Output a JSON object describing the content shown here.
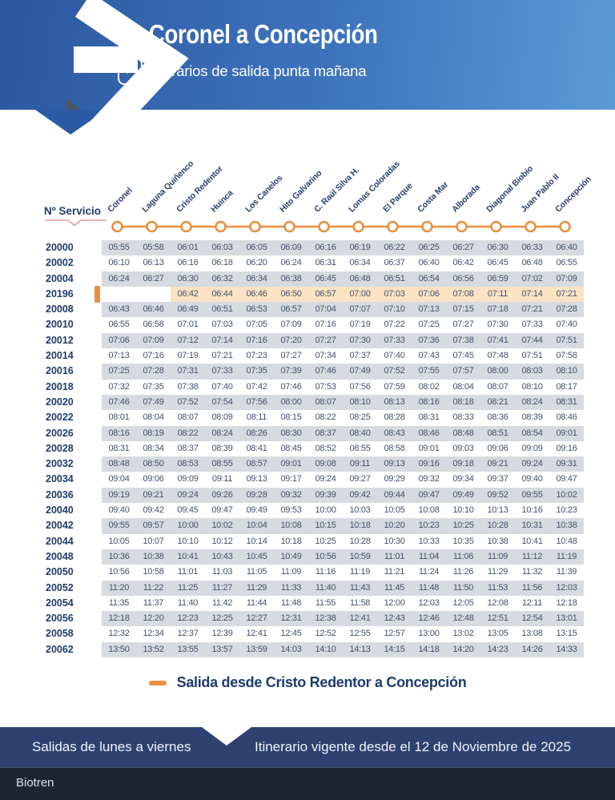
{
  "header": {
    "title": "L2 Coronel a Concepción",
    "subtitle": "Horarios de salida punta mañana"
  },
  "table": {
    "service_label": "Nº Servicio",
    "stations": [
      "Coronel",
      "Laguna Quiñenco",
      "Cristo Redentor",
      "Huinca",
      "Los Canelos",
      "Hito Galvarino",
      "C. Raúl Silva H.",
      "Lomas Coloradas",
      "El Parque",
      "Costa Mar",
      "Alborada",
      "Diagonal Biobío",
      "Juan Pablo II",
      "Concepción"
    ],
    "rows": [
      {
        "service": "20000",
        "highlight": false,
        "times": [
          "05:55",
          "05:58",
          "06:01",
          "06:03",
          "06:05",
          "06:09",
          "06:16",
          "06:19",
          "06:22",
          "06:25",
          "06:27",
          "06:30",
          "06:33",
          "06:40"
        ]
      },
      {
        "service": "20002",
        "highlight": false,
        "times": [
          "06:10",
          "06:13",
          "06:16",
          "06:18",
          "06:20",
          "06:24",
          "06:31",
          "06:34",
          "06:37",
          "06:40",
          "06:42",
          "06:45",
          "06:48",
          "06:55"
        ]
      },
      {
        "service": "20004",
        "highlight": false,
        "times": [
          "06:24",
          "06:27",
          "06:30",
          "06:32",
          "06:34",
          "06:38",
          "06:45",
          "06:48",
          "06:51",
          "06:54",
          "06:56",
          "06:59",
          "07:02",
          "07:09"
        ]
      },
      {
        "service": "20196",
        "highlight": true,
        "times": [
          "",
          "",
          "06:42",
          "06:44",
          "06:46",
          "06:50",
          "06:57",
          "07:00",
          "07:03",
          "07:06",
          "07:08",
          "07:11",
          "07:14",
          "07:21"
        ]
      },
      {
        "service": "20008",
        "highlight": false,
        "times": [
          "06:43",
          "06:46",
          "06:49",
          "06:51",
          "06:53",
          "06:57",
          "07:04",
          "07:07",
          "07:10",
          "07:13",
          "07:15",
          "07:18",
          "07:21",
          "07:28"
        ]
      },
      {
        "service": "20010",
        "highlight": false,
        "times": [
          "06:55",
          "06:58",
          "07:01",
          "07:03",
          "07:05",
          "07:09",
          "07:16",
          "07:19",
          "07:22",
          "07:25",
          "07:27",
          "07:30",
          "07:33",
          "07:40"
        ]
      },
      {
        "service": "20012",
        "highlight": false,
        "times": [
          "07:06",
          "07:09",
          "07:12",
          "07:14",
          "07:16",
          "07:20",
          "07:27",
          "07:30",
          "07:33",
          "07:36",
          "07:38",
          "07:41",
          "07:44",
          "07:51"
        ]
      },
      {
        "service": "20014",
        "highlight": false,
        "times": [
          "07:13",
          "07:16",
          "07:19",
          "07:21",
          "07:23",
          "07:27",
          "07:34",
          "07:37",
          "07:40",
          "07:43",
          "07:45",
          "07:48",
          "07:51",
          "07:58"
        ]
      },
      {
        "service": "20016",
        "highlight": false,
        "times": [
          "07:25",
          "07:28",
          "07:31",
          "07:33",
          "07:35",
          "07:39",
          "07:46",
          "07:49",
          "07:52",
          "07:55",
          "07:57",
          "08:00",
          "08:03",
          "08:10"
        ]
      },
      {
        "service": "20018",
        "highlight": false,
        "times": [
          "07:32",
          "07:35",
          "07:38",
          "07:40",
          "07:42",
          "07:46",
          "07:53",
          "07:56",
          "07:59",
          "08:02",
          "08:04",
          "08:07",
          "08:10",
          "08:17"
        ]
      },
      {
        "service": "20020",
        "highlight": false,
        "times": [
          "07:46",
          "07:49",
          "07:52",
          "07:54",
          "07:56",
          "08:00",
          "08:07",
          "08:10",
          "08:13",
          "08:16",
          "08:18",
          "08:21",
          "08:24",
          "08:31"
        ]
      },
      {
        "service": "20022",
        "highlight": false,
        "times": [
          "08:01",
          "08:04",
          "08:07",
          "08:09",
          "08:11",
          "08:15",
          "08:22",
          "08:25",
          "08:28",
          "08:31",
          "08:33",
          "08:36",
          "08:39",
          "08:46"
        ]
      },
      {
        "service": "20026",
        "highlight": false,
        "times": [
          "08:16",
          "08:19",
          "08:22",
          "08:24",
          "08:26",
          "08:30",
          "08:37",
          "08:40",
          "08:43",
          "08:46",
          "08:48",
          "08:51",
          "08:54",
          "09:01"
        ]
      },
      {
        "service": "20028",
        "highlight": false,
        "times": [
          "08:31",
          "08:34",
          "08:37",
          "08:39",
          "08:41",
          "08:45",
          "08:52",
          "08:55",
          "08:58",
          "09:01",
          "09:03",
          "09:06",
          "09:09",
          "09:16"
        ]
      },
      {
        "service": "20032",
        "highlight": false,
        "times": [
          "08:48",
          "08:50",
          "08:53",
          "08:55",
          "08:57",
          "09:01",
          "09:08",
          "09:11",
          "09:13",
          "09:16",
          "09:18",
          "09:21",
          "09:24",
          "09:31"
        ]
      },
      {
        "service": "20034",
        "highlight": false,
        "times": [
          "09:04",
          "09:06",
          "09:09",
          "09:11",
          "09:13",
          "09:17",
          "09:24",
          "09:27",
          "09:29",
          "09:32",
          "09:34",
          "09:37",
          "09:40",
          "09:47"
        ]
      },
      {
        "service": "20036",
        "highlight": false,
        "times": [
          "09:19",
          "09:21",
          "09:24",
          "09:26",
          "09:28",
          "09:32",
          "09:39",
          "09:42",
          "09:44",
          "09:47",
          "09:49",
          "09:52",
          "09:55",
          "10:02"
        ]
      },
      {
        "service": "20040",
        "highlight": false,
        "times": [
          "09:40",
          "09:42",
          "09:45",
          "09:47",
          "09:49",
          "09:53",
          "10:00",
          "10:03",
          "10:05",
          "10:08",
          "10:10",
          "10:13",
          "10:16",
          "10:23"
        ]
      },
      {
        "service": "20042",
        "highlight": false,
        "times": [
          "09:55",
          "09:57",
          "10:00",
          "10:02",
          "10:04",
          "10:08",
          "10:15",
          "10:18",
          "10:20",
          "10:23",
          "10:25",
          "10:28",
          "10:31",
          "10:38"
        ]
      },
      {
        "service": "20044",
        "highlight": false,
        "times": [
          "10:05",
          "10:07",
          "10:10",
          "10:12",
          "10:14",
          "10:18",
          "10:25",
          "10:28",
          "10:30",
          "10:33",
          "10:35",
          "10:38",
          "10:41",
          "10:48"
        ]
      },
      {
        "service": "20048",
        "highlight": false,
        "times": [
          "10:36",
          "10:38",
          "10:41",
          "10:43",
          "10:45",
          "10:49",
          "10:56",
          "10:59",
          "11:01",
          "11:04",
          "11:06",
          "11:09",
          "11:12",
          "11:19"
        ]
      },
      {
        "service": "20050",
        "highlight": false,
        "times": [
          "10:56",
          "10:58",
          "11:01",
          "11:03",
          "11:05",
          "11:09",
          "11:16",
          "11:19",
          "11:21",
          "11:24",
          "11:26",
          "11:29",
          "11:32",
          "11:39"
        ]
      },
      {
        "service": "20052",
        "highlight": false,
        "times": [
          "11:20",
          "11:22",
          "11:25",
          "11:27",
          "11:29",
          "11:33",
          "11:40",
          "11:43",
          "11:45",
          "11:48",
          "11:50",
          "11:53",
          "11:56",
          "12:03"
        ]
      },
      {
        "service": "20054",
        "highlight": false,
        "times": [
          "11:35",
          "11:37",
          "11:40",
          "11:42",
          "11:44",
          "11:48",
          "11:55",
          "11:58",
          "12:00",
          "12:03",
          "12:05",
          "12:08",
          "12:11",
          "12:18"
        ]
      },
      {
        "service": "20056",
        "highlight": false,
        "times": [
          "12:18",
          "12:20",
          "12:23",
          "12:25",
          "12:27",
          "12:31",
          "12:38",
          "12:41",
          "12:43",
          "12:46",
          "12:48",
          "12:51",
          "12:54",
          "13:01"
        ]
      },
      {
        "service": "20058",
        "highlight": false,
        "times": [
          "12:32",
          "12:34",
          "12:37",
          "12:39",
          "12:41",
          "12:45",
          "12:52",
          "12:55",
          "12:57",
          "13:00",
          "13:02",
          "13:05",
          "13:08",
          "13:15"
        ]
      },
      {
        "service": "20062",
        "highlight": false,
        "times": [
          "13:50",
          "13:52",
          "13:55",
          "13:57",
          "13:59",
          "14:03",
          "14:10",
          "14:13",
          "14:15",
          "14:18",
          "14:20",
          "14:23",
          "14:26",
          "14:33"
        ]
      }
    ]
  },
  "legend": {
    "label": "Salida desde Cristo Redentor a Concepción"
  },
  "footer": {
    "left": "Salidas de lunes a viernes",
    "right": "Itinerario vigente desde el 12 de Noviembre de 2025",
    "brand": "Biotren"
  },
  "colors": {
    "header_gradient_start": "#2c58a0",
    "header_gradient_end": "#5b9ad8",
    "navy_text": "#223a6a",
    "time_text": "#44506b",
    "row_grey": "#d7dae0",
    "highlight_peach": "#fbe3c4",
    "accent_orange": "#ea8f3e",
    "salmon_underline": "#e79a9b",
    "footer_navy": "#2e4170",
    "brand_bar_dark": "#1d2533",
    "check_green": "#8bc43f"
  }
}
